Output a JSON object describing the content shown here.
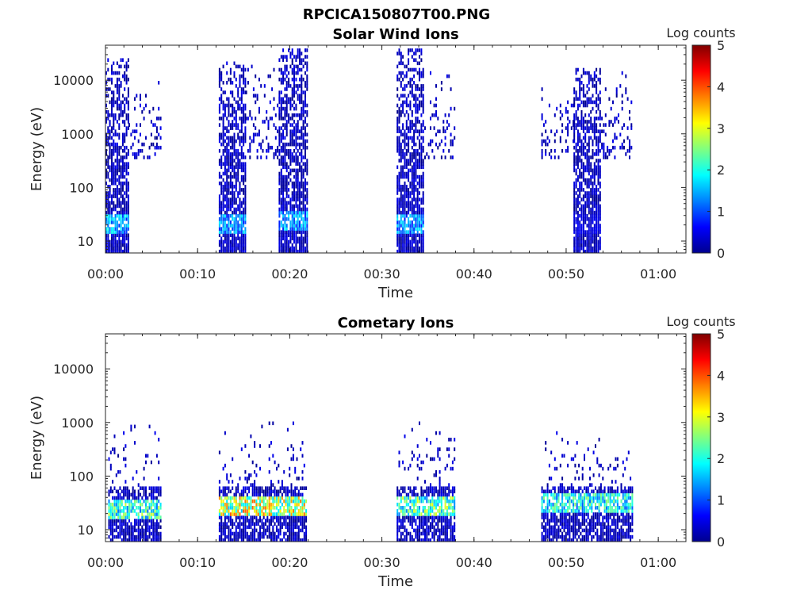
{
  "figure": {
    "title": "RPCICA150807T00.PNG"
  },
  "chart_data": [
    {
      "type": "heatmap",
      "title": "Solar Wind Ions",
      "xlabel": "Time",
      "ylabel": "Energy (eV)",
      "x_ticks": [
        "00:00",
        "00:10",
        "00:20",
        "00:30",
        "00:40",
        "00:50",
        "01:00"
      ],
      "x_range_minutes": [
        0,
        63
      ],
      "y_scale": "log",
      "y_ticks": [
        "10",
        "100",
        "1000",
        "10000"
      ],
      "y_range_eV": [
        6,
        45000
      ],
      "colorbar": {
        "label": "Log counts",
        "ticks": [
          "0",
          "1",
          "2",
          "3",
          "4",
          "5"
        ],
        "range": [
          0,
          5
        ],
        "colormap": "jet"
      },
      "bursts": [
        {
          "start_min": 0.0,
          "end_min": 2.5,
          "emax_eV": 25000,
          "peak_log_counts": 2.0,
          "peak_energy_eV": 20
        },
        {
          "start_min": 2.5,
          "end_min": 6.0,
          "emax_eV": 12000,
          "sparse": true
        },
        {
          "start_min": 12.3,
          "end_min": 15.2,
          "emax_eV": 22000,
          "peak_log_counts": 1.8,
          "peak_energy_eV": 20
        },
        {
          "start_min": 15.2,
          "end_min": 18.8,
          "emax_eV": 20000,
          "sparse": true
        },
        {
          "start_min": 18.8,
          "end_min": 21.8,
          "emax_eV": 35000,
          "peak_log_counts": 1.9,
          "peak_energy_eV": 22
        },
        {
          "start_min": 31.6,
          "end_min": 34.6,
          "emax_eV": 38000,
          "peak_log_counts": 1.8,
          "peak_energy_eV": 20
        },
        {
          "start_min": 34.6,
          "end_min": 38.0,
          "emax_eV": 14000,
          "sparse": true
        },
        {
          "start_min": 47.3,
          "end_min": 50.8,
          "emax_eV": 9000,
          "sparse": true
        },
        {
          "start_min": 50.8,
          "end_min": 53.8,
          "emax_eV": 15000,
          "peak_log_counts": 0.6,
          "peak_energy_eV": 20
        },
        {
          "start_min": 53.8,
          "end_min": 57.2,
          "emax_eV": 14000,
          "sparse": true
        }
      ]
    },
    {
      "type": "heatmap",
      "title": "Cometary Ions",
      "xlabel": "Time",
      "ylabel": "Energy (eV)",
      "x_ticks": [
        "00:00",
        "00:10",
        "00:20",
        "00:30",
        "00:40",
        "00:50",
        "01:00"
      ],
      "x_range_minutes": [
        0,
        63
      ],
      "y_scale": "log",
      "y_ticks": [
        "10",
        "100",
        "1000",
        "10000"
      ],
      "y_range_eV": [
        6,
        45000
      ],
      "colorbar": {
        "label": "Log counts",
        "ticks": [
          "0",
          "1",
          "2",
          "3",
          "4",
          "5"
        ],
        "range": [
          0,
          5
        ],
        "colormap": "jet"
      },
      "bursts": [
        {
          "start_min": 0.3,
          "end_min": 6.0,
          "emax_eV": 1200,
          "peak_log_counts": 2.9,
          "peak_energy_eV": 22
        },
        {
          "start_min": 12.3,
          "end_min": 21.8,
          "emax_eV": 1200,
          "peak_log_counts": 3.9,
          "peak_energy_eV": 25
        },
        {
          "start_min": 31.6,
          "end_min": 38.0,
          "emax_eV": 1200,
          "peak_log_counts": 3.1,
          "peak_energy_eV": 25
        },
        {
          "start_min": 47.3,
          "end_min": 57.2,
          "emax_eV": 650,
          "peak_log_counts": 2.6,
          "peak_energy_eV": 30
        }
      ]
    }
  ]
}
